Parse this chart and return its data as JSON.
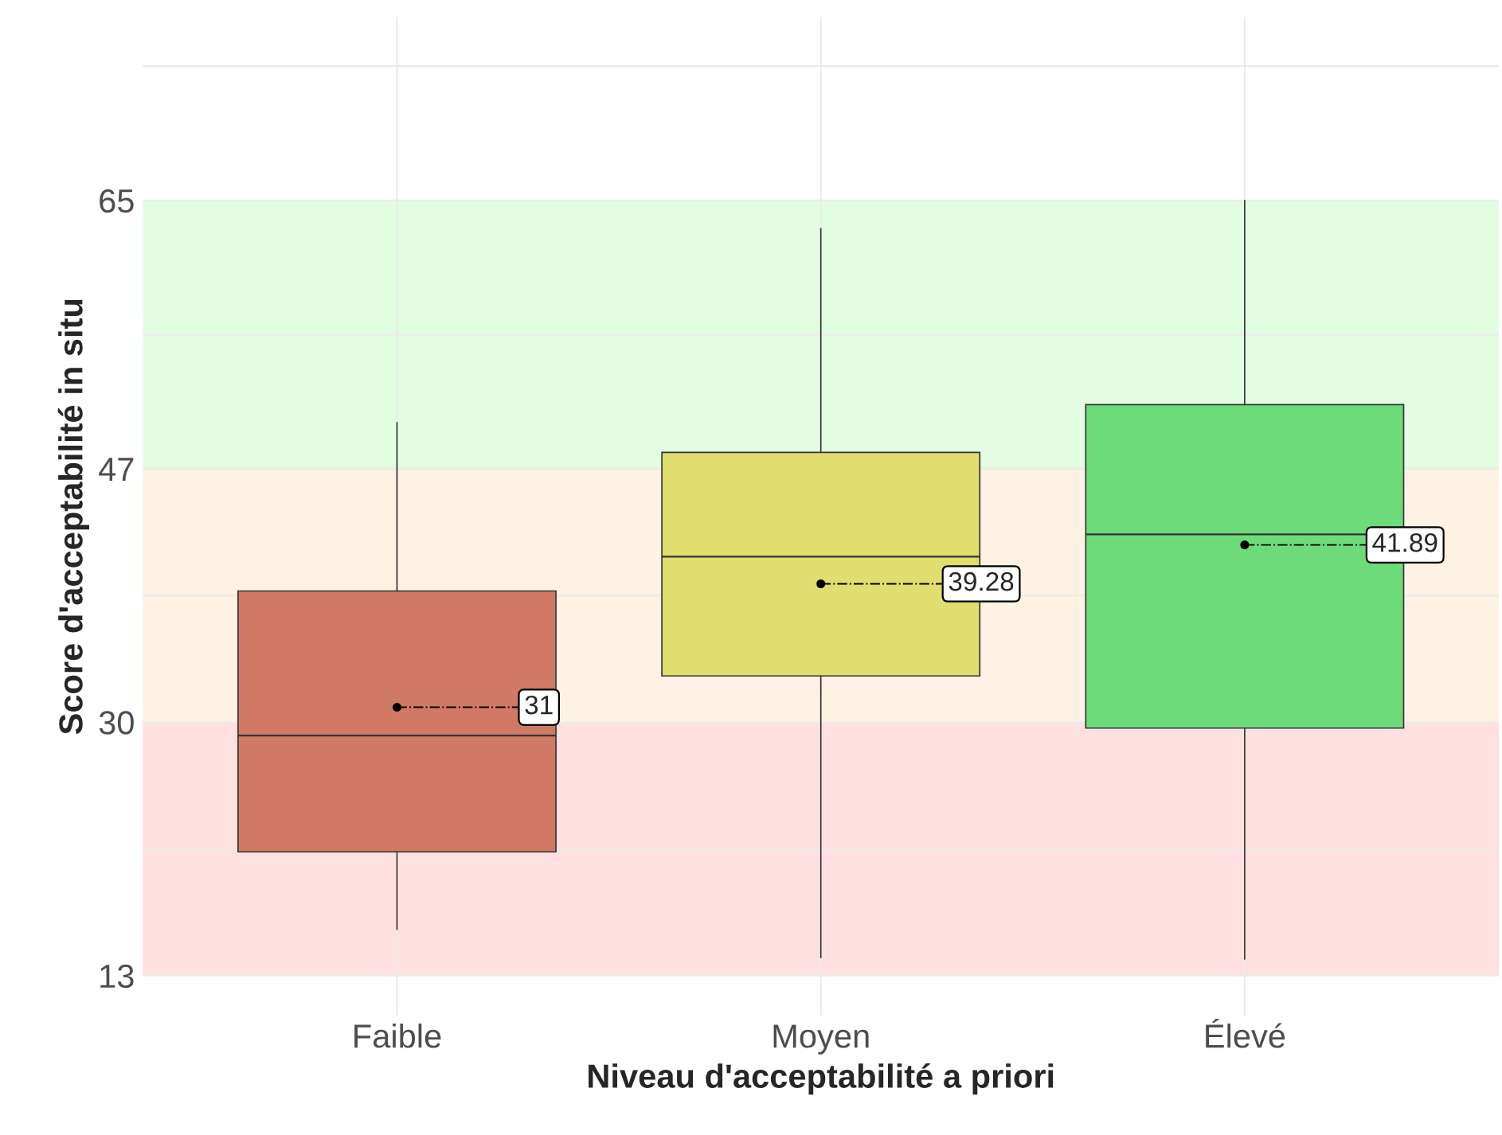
{
  "chart_data": {
    "type": "box",
    "xlabel": "Niveau d'acceptabilité a priori",
    "ylabel": "Score d'acceptabilité in situ",
    "categories": [
      "Faible",
      "Moyen",
      "Élevé"
    ],
    "colors": [
      "#d07a66",
      "#e0de6e",
      "#6edb7a"
    ],
    "boxes": [
      {
        "low": 16.1,
        "q1": 21.3,
        "median": 29.1,
        "q3": 38.8,
        "high": 50.1,
        "mean": 31
      },
      {
        "low": 14.2,
        "q1": 33.1,
        "median": 41.1,
        "q3": 48.1,
        "high": 63.1,
        "mean": 39.28
      },
      {
        "low": 14.1,
        "q1": 29.6,
        "median": 42.6,
        "q3": 51.3,
        "high": 65,
        "mean": 41.89
      }
    ],
    "annotations": [
      "31",
      "39.28",
      "41.89"
    ],
    "bands": [
      {
        "axis": "y",
        "from": 13,
        "to": 30,
        "color": "#ffe0e0"
      },
      {
        "axis": "y",
        "from": 30,
        "to": 47,
        "color": "#fdf2e3"
      },
      {
        "axis": "y",
        "from": 47,
        "to": 65,
        "color": "#e2fde2"
      }
    ],
    "ylim": [
      10.3,
      77.3
    ],
    "yticks": [
      13,
      {
        "value": 21.5,
        "label": null
      },
      30,
      {
        "value": 38.5,
        "label": null
      },
      47,
      {
        "value": 56,
        "label": null
      },
      65,
      {
        "value": 74,
        "label": null
      }
    ],
    "grid": true
  }
}
